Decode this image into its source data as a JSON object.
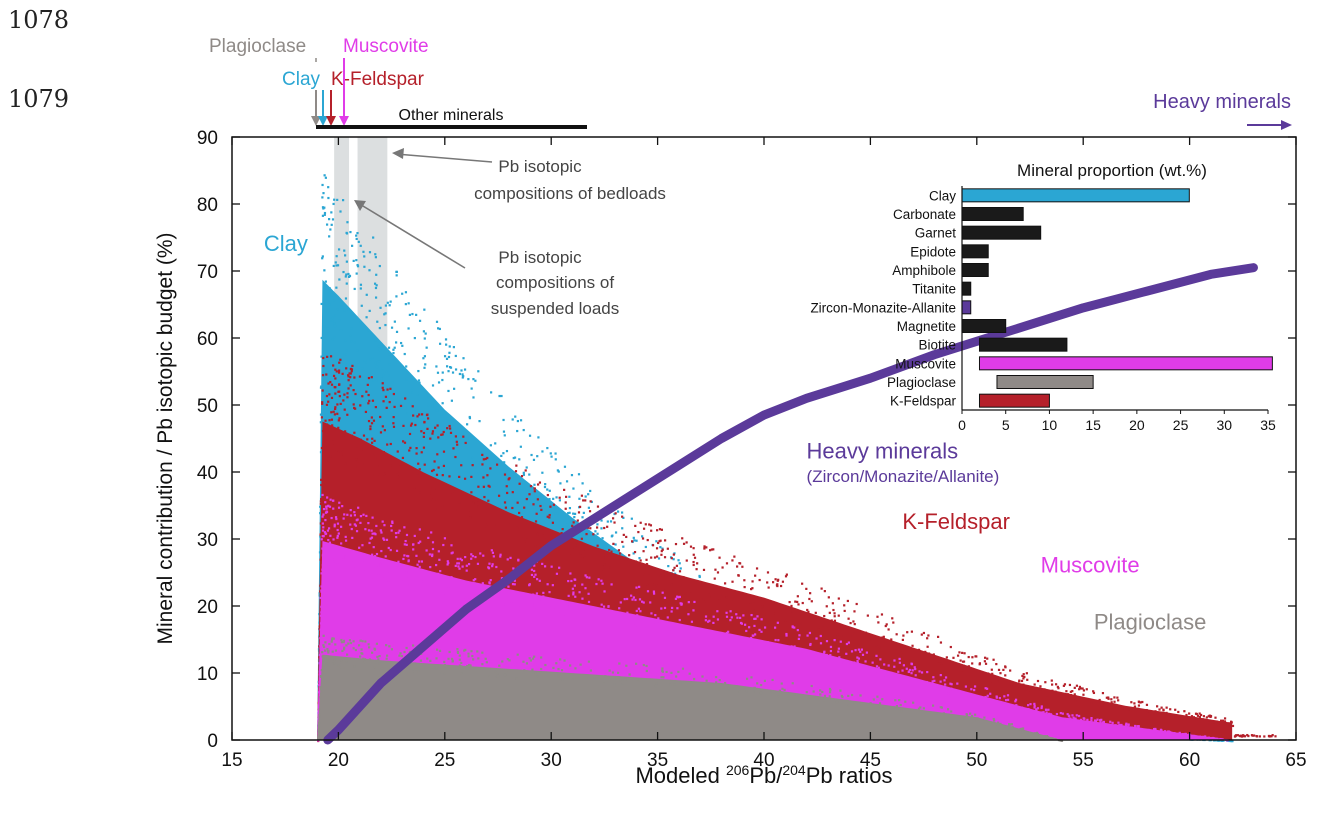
{
  "line_numbers": [
    "1078",
    "1079"
  ],
  "colors": {
    "clay": "#2ba6d3",
    "kfeldspar": "#b5202a",
    "muscovite": "#e03ce8",
    "plagioclase": "#8f8a87",
    "heavy": "#5b3a9a",
    "other": "#1a1a1a",
    "shade": "#dcdfe0",
    "arrow": "#777777"
  },
  "chart_data": [
    {
      "type": "scatter",
      "xlabel_parts": [
        "Modeled ",
        "206",
        "Pb/",
        "204",
        "Pb ratios"
      ],
      "ylabel": "Mineral contribution / Pb isotopic budget (%)",
      "xlim": [
        15,
        65
      ],
      "ylim": [
        0,
        90
      ],
      "xticks": [
        15,
        20,
        25,
        30,
        35,
        40,
        45,
        50,
        55,
        60,
        65
      ],
      "yticks": [
        0,
        10,
        20,
        30,
        40,
        50,
        60,
        70,
        80,
        90
      ],
      "grid": false,
      "series": [
        {
          "name": "Clay",
          "key": "clay",
          "envelope": [
            [
              19,
              0
            ],
            [
              19.2,
              81
            ],
            [
              20,
              78
            ],
            [
              22,
              70
            ],
            [
              25,
              58
            ],
            [
              28,
              48
            ],
            [
              31,
              39
            ],
            [
              34,
              31
            ],
            [
              37,
              24
            ],
            [
              40,
              17
            ],
            [
              43,
              12
            ],
            [
              46,
              7
            ],
            [
              50,
              3
            ],
            [
              55,
              1
            ],
            [
              62,
              0
            ]
          ]
        },
        {
          "name": "K-Feldspar",
          "key": "kfeldspar",
          "envelope": [
            [
              19,
              0
            ],
            [
              19.2,
              56
            ],
            [
              21,
              53
            ],
            [
              24,
              47
            ],
            [
              28,
              40
            ],
            [
              32,
              34
            ],
            [
              36,
              29
            ],
            [
              40,
              25
            ],
            [
              44,
              20
            ],
            [
              48,
              15
            ],
            [
              52,
              10
            ],
            [
              57,
              6
            ],
            [
              62,
              3
            ]
          ]
        },
        {
          "name": "Muscovite",
          "key": "muscovite",
          "envelope": [
            [
              19,
              0
            ],
            [
              19.2,
              35
            ],
            [
              22,
              32
            ],
            [
              26,
              28
            ],
            [
              30,
              25
            ],
            [
              34,
              22
            ],
            [
              38,
              19
            ],
            [
              42,
              16
            ],
            [
              46,
              12
            ],
            [
              50,
              8
            ],
            [
              54,
              4
            ],
            [
              58,
              2
            ],
            [
              62,
              0
            ]
          ]
        },
        {
          "name": "Plagioclase",
          "key": "plagioclase",
          "envelope": [
            [
              19,
              0
            ],
            [
              19.2,
              15
            ],
            [
              22,
              14
            ],
            [
              26,
              13
            ],
            [
              30,
              12
            ],
            [
              34,
              11
            ],
            [
              38,
              10
            ],
            [
              42,
              8
            ],
            [
              46,
              6
            ],
            [
              50,
              4
            ],
            [
              52,
              2
            ],
            [
              54,
              0
            ]
          ]
        },
        {
          "name": "Heavy minerals",
          "key": "heavy",
          "curve": [
            [
              19.5,
              0
            ],
            [
              20,
              1.5
            ],
            [
              21,
              5
            ],
            [
              22,
              8.5
            ],
            [
              24,
              14
            ],
            [
              26,
              19.5
            ],
            [
              28,
              24
            ],
            [
              30,
              29
            ],
            [
              32,
              33
            ],
            [
              34,
              37
            ],
            [
              36,
              41
            ],
            [
              38,
              45
            ],
            [
              40,
              48.5
            ],
            [
              42,
              51
            ],
            [
              45,
              54
            ],
            [
              48,
              57.5
            ],
            [
              50,
              59.5
            ],
            [
              52,
              61.5
            ],
            [
              55,
              64.5
            ],
            [
              58,
              67
            ],
            [
              61,
              69.5
            ],
            [
              63,
              70.5
            ]
          ]
        }
      ],
      "series_labels": [
        {
          "text": "Clay",
          "key": "clay",
          "at": [
            16.5,
            73
          ],
          "size": 22
        },
        {
          "text": "Heavy minerals",
          "key": "heavy",
          "at": [
            42,
            42
          ],
          "size": 22
        },
        {
          "text": "(Zircon/Monazite/Allanite)",
          "key": "heavy",
          "at": [
            42,
            38.5
          ],
          "size": 17
        },
        {
          "text": "K-Feldspar",
          "key": "kfeldspar",
          "at": [
            46.5,
            31.5
          ],
          "size": 22
        },
        {
          "text": "Muscovite",
          "key": "muscovite",
          "at": [
            53,
            25
          ],
          "size": 22
        },
        {
          "text": "Plagioclase",
          "key": "plagioclase",
          "at": [
            55.5,
            16.5
          ],
          "size": 22
        }
      ],
      "shaded_bands": [
        {
          "x0": 19.8,
          "x1": 20.5
        },
        {
          "x0": 20.9,
          "x1": 22.3
        }
      ],
      "annotations": {
        "bedloads": [
          "Pb isotopic",
          "compositions of bedloads"
        ],
        "suspended": [
          "Pb isotopic",
          "compositions of",
          "suspended loads"
        ]
      },
      "top_labels": {
        "plagioclase": "Plagioclase",
        "muscovite": "Muscovite",
        "clay": "Clay",
        "kfeldspar": "K-Feldspar",
        "other": "Other minerals",
        "heavy": "Heavy minerals"
      }
    },
    {
      "type": "bar",
      "orientation": "horizontal",
      "title": "Mineral proportion (wt.%)",
      "categories": [
        "Clay",
        "Carbonate",
        "Garnet",
        "Epidote",
        "Amphibole",
        "Titanite",
        "Zircon-Monazite-Allanite",
        "Magnetite",
        "Biotite",
        "Muscovite",
        "Plagioclase",
        "K-Feldspar"
      ],
      "ranges": [
        [
          0,
          26
        ],
        [
          0,
          7
        ],
        [
          0,
          9
        ],
        [
          0,
          3
        ],
        [
          0,
          3
        ],
        [
          0,
          1
        ],
        [
          0,
          1
        ],
        [
          0,
          5
        ],
        [
          2,
          12
        ],
        [
          2,
          35.5
        ],
        [
          4,
          15
        ],
        [
          2,
          10
        ]
      ],
      "bar_colors": [
        "clay",
        "other",
        "other",
        "other",
        "other",
        "other",
        "heavy",
        "other",
        "other",
        "muscovite",
        "plagioclase",
        "kfeldspar"
      ],
      "xlim": [
        0,
        35
      ],
      "xticks": [
        0,
        5,
        10,
        15,
        20,
        25,
        30,
        35
      ]
    }
  ]
}
